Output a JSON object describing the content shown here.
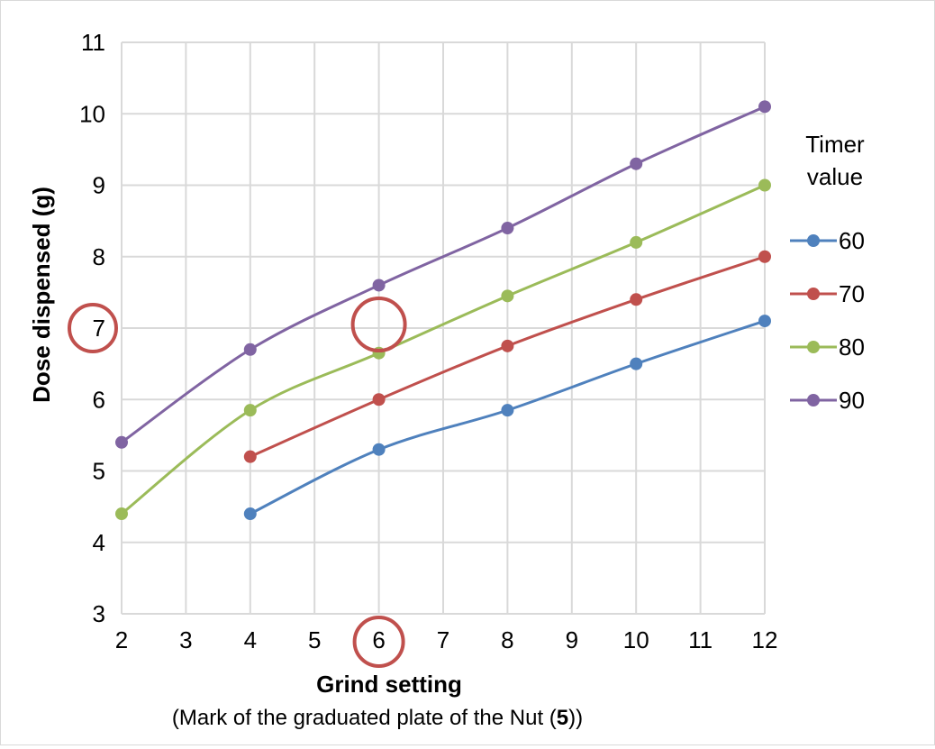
{
  "chart_data": {
    "type": "line",
    "xlabel": "Grind setting",
    "xsubtitle_prefix": "(Mark of the graduated plate of the Nut (",
    "xsubtitle_bold": "5",
    "xsubtitle_suffix": "))",
    "ylabel": "Dose dispensed (g)",
    "xlim": [
      2,
      12
    ],
    "ylim": [
      3,
      11
    ],
    "xticks": [
      2,
      3,
      4,
      5,
      6,
      7,
      8,
      9,
      10,
      11,
      12
    ],
    "yticks": [
      3,
      4,
      5,
      6,
      7,
      8,
      9,
      10,
      11
    ],
    "grid": true,
    "legend": {
      "title_line1": "Timer",
      "title_line2": "value",
      "placement": "right"
    },
    "series": [
      {
        "name": "60",
        "color": "#4f81bd",
        "x": [
          4,
          6,
          8,
          10,
          12
        ],
        "y": [
          4.4,
          5.3,
          5.85,
          6.5,
          7.1
        ]
      },
      {
        "name": "70",
        "color": "#c0504d",
        "x": [
          4,
          6,
          8,
          10,
          12
        ],
        "y": [
          5.2,
          6.0,
          6.75,
          7.4,
          8.0
        ]
      },
      {
        "name": "80",
        "color": "#9bbb59",
        "x": [
          2,
          4,
          6,
          8,
          10,
          12
        ],
        "y": [
          4.4,
          5.85,
          6.65,
          7.45,
          8.2,
          9.0
        ]
      },
      {
        "name": "90",
        "color": "#8064a2",
        "x": [
          2,
          4,
          6,
          8,
          10,
          12
        ],
        "y": [
          5.4,
          6.7,
          7.6,
          8.4,
          9.3,
          10.1
        ]
      }
    ],
    "annotations": [
      {
        "kind": "circle",
        "target": "y-tick",
        "value": 7
      },
      {
        "kind": "circle",
        "target": "point",
        "x": 6,
        "y": 7.05
      },
      {
        "kind": "circle",
        "target": "x-tick",
        "value": 6
      }
    ]
  }
}
